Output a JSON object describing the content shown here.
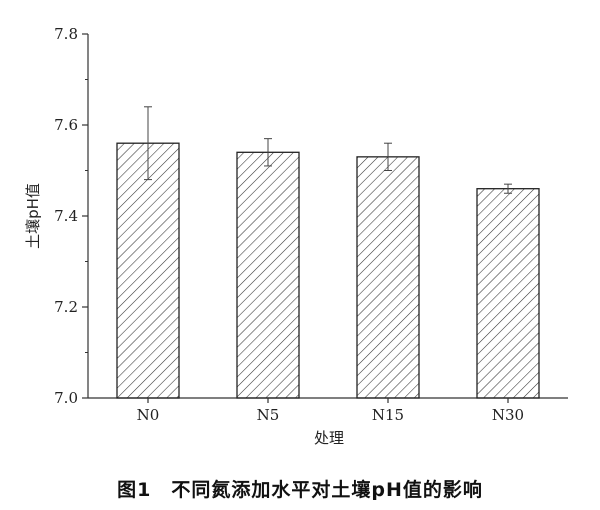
{
  "chart_data": {
    "type": "bar",
    "categories": [
      "N0",
      "N5",
      "N15",
      "N30"
    ],
    "values": [
      7.56,
      7.54,
      7.53,
      7.46
    ],
    "errors": [
      0.08,
      0.03,
      0.03,
      0.01
    ],
    "xlabel": "处理",
    "ylabel": "土壤pH值",
    "ylim": [
      7.0,
      7.8
    ],
    "yticks": [
      "7.0",
      "7.2",
      "7.4",
      "7.6",
      "7.8"
    ],
    "bar_fill": "hatched",
    "grid": false
  },
  "caption": "图1　不同氮添加水平对土壤pH值的影响",
  "colors": {
    "axis": "#333333",
    "bar_stroke": "#222222",
    "hatch": "#333333"
  }
}
